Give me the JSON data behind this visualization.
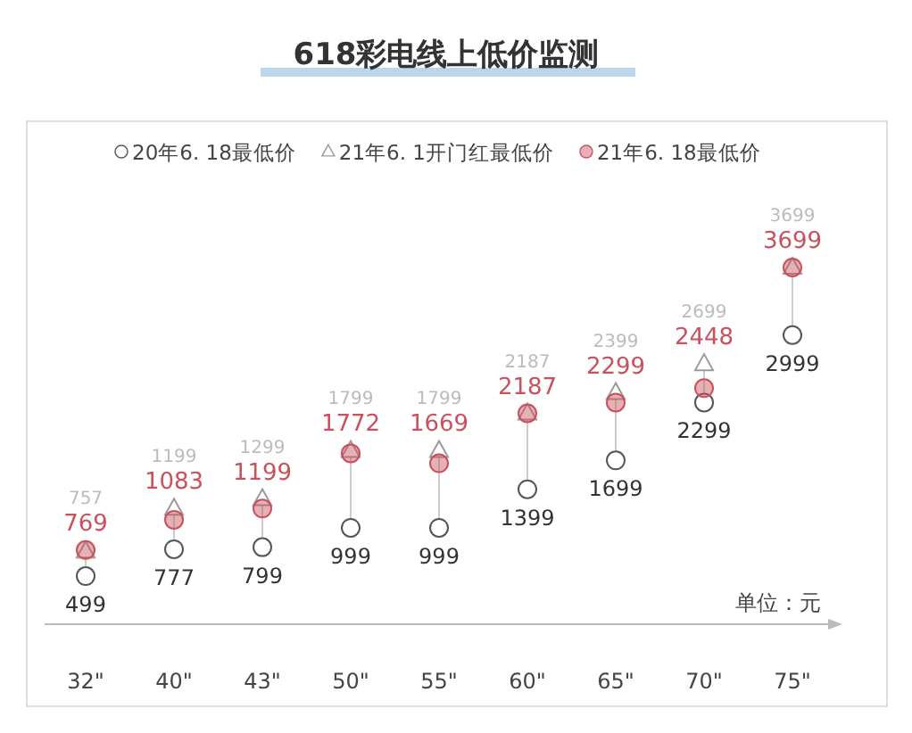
{
  "chart_data": {
    "type": "scatter",
    "title": "618彩电线上低价监测",
    "categories": [
      "32\"",
      "40\"",
      "43\"",
      "50\"",
      "55\"",
      "60\"",
      "65\"",
      "70\"",
      "75\""
    ],
    "series": [
      {
        "name": "20年6. 18最低价",
        "color": "#555555",
        "marker": "circle",
        "values": [
          499,
          777,
          799,
          999,
          999,
          1399,
          1699,
          2299,
          2999
        ]
      },
      {
        "name": "21年6. 1开门红最低价",
        "color": "#9a9a9a",
        "marker": "triangle",
        "values": [
          757,
          1199,
          1299,
          1799,
          1799,
          2187,
          2399,
          2699,
          3699
        ]
      },
      {
        "name": "21年6. 18最低价",
        "color": "#c9505c",
        "marker": "circle",
        "values": [
          769,
          1083,
          1199,
          1772,
          1669,
          2187,
          2299,
          2448,
          3699
        ]
      }
    ],
    "tick_labels": "x",
    "data_labels": true,
    "legend": "top",
    "annotations": [
      "单位：元"
    ]
  }
}
